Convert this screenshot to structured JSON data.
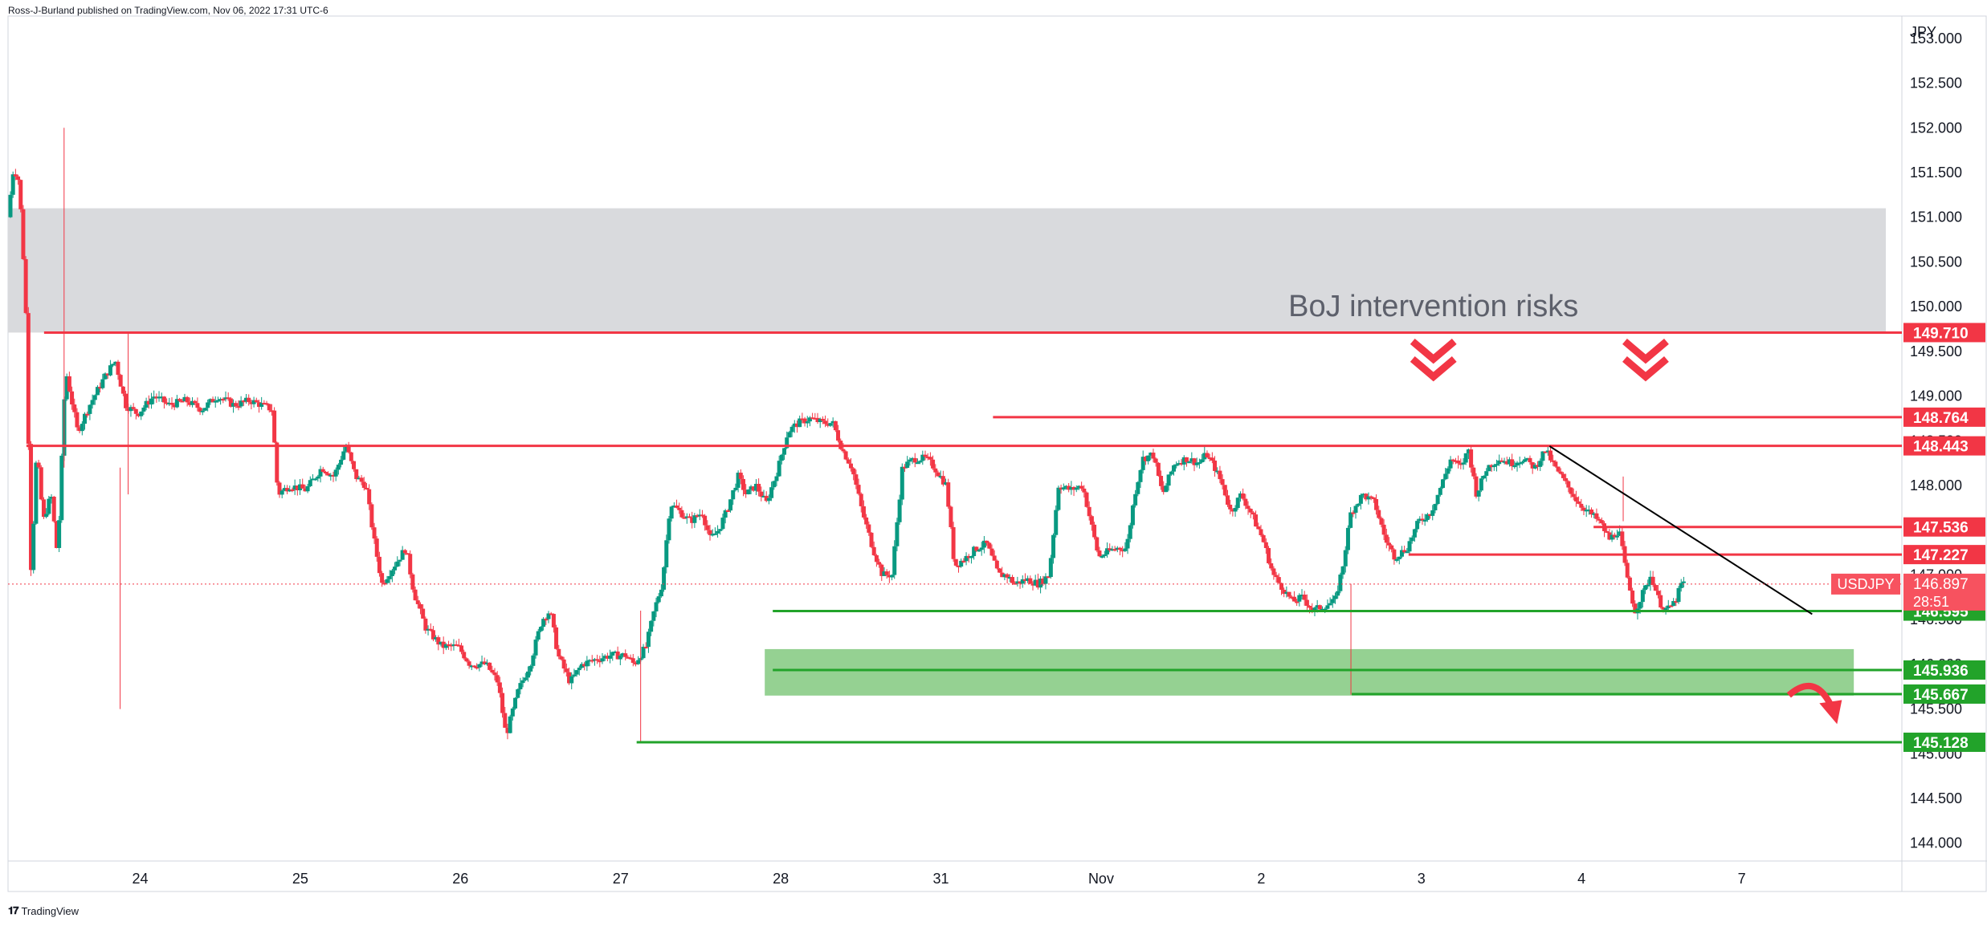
{
  "header": {
    "published": "Ross-J-Burland published on TradingView.com, Nov 06, 2022 17:31 UTC-6"
  },
  "footer": {
    "brand": "TradingView"
  },
  "colors": {
    "up": "#089981",
    "down": "#f23645",
    "support": "#22a32a",
    "resistance": "#f23645",
    "zone_grey": "#d9dadd",
    "zone_green": "#8fcf8c",
    "trend": "#000000"
  },
  "chart_data": {
    "type": "candlestick",
    "symbol": "USDJPY",
    "currency_label": "JPY",
    "ylim": [
      143.8,
      153.25
    ],
    "y_ticks": [
      "153.000",
      "152.500",
      "152.000",
      "151.500",
      "151.000",
      "150.500",
      "150.000",
      "149.500",
      "149.000",
      "148.500",
      "148.000",
      "147.500",
      "147.000",
      "146.500",
      "146.000",
      "145.500",
      "145.000",
      "144.500",
      "144.000"
    ],
    "x_ticks": [
      {
        "label": "24",
        "t": 100
      },
      {
        "label": "25",
        "t": 300
      },
      {
        "label": "26",
        "t": 500
      },
      {
        "label": "27",
        "t": 700
      },
      {
        "label": "28",
        "t": 900
      },
      {
        "label": "31",
        "t": 1100
      },
      {
        "label": "Nov",
        "t": 1300
      },
      {
        "label": "2",
        "t": 1500
      },
      {
        "label": "3",
        "t": 1700
      },
      {
        "label": "4",
        "t": 1900
      },
      {
        "label": "7",
        "t": 2100
      }
    ],
    "t_range": [
      -65,
      2300
    ],
    "price_badges": [
      {
        "value": "149.710",
        "price": 149.71,
        "kind": "resistance"
      },
      {
        "value": "148.764",
        "price": 148.764,
        "kind": "resistance"
      },
      {
        "value": "148.443",
        "price": 148.443,
        "kind": "resistance"
      },
      {
        "value": "147.536",
        "price": 147.536,
        "kind": "resistance"
      },
      {
        "value": "147.227",
        "price": 147.227,
        "kind": "resistance"
      },
      {
        "value": "146.595",
        "price": 146.595,
        "kind": "support"
      },
      {
        "value": "145.936",
        "price": 145.936,
        "kind": "support"
      },
      {
        "value": "145.667",
        "price": 145.667,
        "kind": "support"
      },
      {
        "value": "145.128",
        "price": 145.128,
        "kind": "support"
      }
    ],
    "current": {
      "symbol": "USDJPY",
      "price": "146.897",
      "countdown": "28:51",
      "value": 146.897
    },
    "annotation": "BoJ intervention risks",
    "levels": [
      {
        "price": 149.71,
        "t0": -20,
        "kind": "resistance"
      },
      {
        "price": 148.764,
        "t0": 1165,
        "kind": "resistance"
      },
      {
        "price": 148.443,
        "t0": -42,
        "kind": "resistance"
      },
      {
        "price": 147.536,
        "t0": 1915,
        "kind": "resistance"
      },
      {
        "price": 147.227,
        "t0": 1684,
        "kind": "resistance"
      },
      {
        "price": 146.595,
        "t0": 890,
        "kind": "support"
      },
      {
        "price": 145.936,
        "t0": 890,
        "kind": "support"
      },
      {
        "price": 145.667,
        "t0": 1613,
        "kind": "support"
      },
      {
        "price": 145.128,
        "t0": 720,
        "kind": "support"
      }
    ],
    "zones": [
      {
        "kind": "grey",
        "t0": -65,
        "t1": 2280,
        "p0": 149.71,
        "p1": 151.1
      },
      {
        "kind": "green",
        "t0": 880,
        "t1": 2240,
        "p0": 145.65,
        "p1": 146.17
      }
    ],
    "trendline": {
      "t0": 1860,
      "p0": 148.44,
      "t1": 2188,
      "p1": 146.56
    },
    "arrows_down": [
      {
        "t": 1715,
        "p": 149.45
      },
      {
        "t": 1980,
        "p": 149.45
      }
    ],
    "curved_arrow": {
      "t": 2195,
      "p": 145.6
    },
    "ohlc_anchors": [
      [
        -62,
        151.0
      ],
      [
        -55,
        151.55
      ],
      [
        -48,
        151.4
      ],
      [
        -40,
        150.1
      ],
      [
        -33,
        147.0
      ],
      [
        -26,
        148.4
      ],
      [
        -18,
        147.6
      ],
      [
        -8,
        147.9
      ],
      [
        0,
        147.2
      ],
      [
        10,
        149.3
      ],
      [
        25,
        148.6
      ],
      [
        40,
        148.9
      ],
      [
        58,
        149.2
      ],
      [
        72,
        149.4
      ],
      [
        85,
        148.9
      ],
      [
        100,
        148.8
      ],
      [
        120,
        149.0
      ],
      [
        140,
        148.9
      ],
      [
        160,
        148.95
      ],
      [
        180,
        148.85
      ],
      [
        200,
        149.0
      ],
      [
        220,
        148.9
      ],
      [
        240,
        148.95
      ],
      [
        255,
        148.9
      ],
      [
        268,
        148.85
      ],
      [
        275,
        147.9
      ],
      [
        290,
        148.0
      ],
      [
        310,
        147.95
      ],
      [
        330,
        148.2
      ],
      [
        345,
        148.1
      ],
      [
        360,
        148.45
      ],
      [
        372,
        148.1
      ],
      [
        385,
        148.0
      ],
      [
        395,
        147.4
      ],
      [
        405,
        146.9
      ],
      [
        420,
        147.1
      ],
      [
        435,
        147.3
      ],
      [
        445,
        146.8
      ],
      [
        460,
        146.4
      ],
      [
        480,
        146.2
      ],
      [
        500,
        146.2
      ],
      [
        515,
        146.0
      ],
      [
        535,
        146.0
      ],
      [
        550,
        145.8
      ],
      [
        560,
        145.2
      ],
      [
        575,
        145.7
      ],
      [
        590,
        146.0
      ],
      [
        605,
        146.5
      ],
      [
        615,
        146.6
      ],
      [
        625,
        146.1
      ],
      [
        640,
        145.8
      ],
      [
        655,
        146.0
      ],
      [
        670,
        146.05
      ],
      [
        690,
        146.1
      ],
      [
        710,
        146.1
      ],
      [
        720,
        146.0
      ],
      [
        735,
        146.2
      ],
      [
        745,
        146.6
      ],
      [
        755,
        146.9
      ],
      [
        765,
        147.8
      ],
      [
        778,
        147.7
      ],
      [
        790,
        147.6
      ],
      [
        805,
        147.7
      ],
      [
        815,
        147.4
      ],
      [
        825,
        147.5
      ],
      [
        835,
        147.7
      ],
      [
        850,
        148.1
      ],
      [
        860,
        147.9
      ],
      [
        872,
        148.0
      ],
      [
        885,
        147.8
      ],
      [
        900,
        148.2
      ],
      [
        912,
        148.6
      ],
      [
        925,
        148.7
      ],
      [
        940,
        148.75
      ],
      [
        955,
        148.7
      ],
      [
        968,
        148.7
      ],
      [
        980,
        148.4
      ],
      [
        992,
        148.2
      ],
      [
        1005,
        147.7
      ],
      [
        1018,
        147.3
      ],
      [
        1030,
        147.0
      ],
      [
        1042,
        147.0
      ],
      [
        1055,
        148.2
      ],
      [
        1070,
        148.3
      ],
      [
        1085,
        148.3
      ],
      [
        1095,
        148.2
      ],
      [
        1110,
        148.0
      ],
      [
        1120,
        147.1
      ],
      [
        1135,
        147.2
      ],
      [
        1148,
        147.3
      ],
      [
        1160,
        147.35
      ],
      [
        1175,
        147.0
      ],
      [
        1185,
        147.0
      ],
      [
        1195,
        146.9
      ],
      [
        1210,
        146.95
      ],
      [
        1225,
        146.9
      ],
      [
        1238,
        147.0
      ],
      [
        1250,
        148.0
      ],
      [
        1265,
        147.95
      ],
      [
        1280,
        148.0
      ],
      [
        1290,
        147.6
      ],
      [
        1300,
        147.2
      ],
      [
        1310,
        147.25
      ],
      [
        1322,
        147.3
      ],
      [
        1335,
        147.3
      ],
      [
        1345,
        147.9
      ],
      [
        1355,
        148.3
      ],
      [
        1368,
        148.35
      ],
      [
        1380,
        147.9
      ],
      [
        1395,
        148.25
      ],
      [
        1410,
        148.3
      ],
      [
        1425,
        148.25
      ],
      [
        1435,
        148.35
      ],
      [
        1445,
        148.2
      ],
      [
        1455,
        148.0
      ],
      [
        1465,
        147.7
      ],
      [
        1478,
        147.9
      ],
      [
        1490,
        147.7
      ],
      [
        1505,
        147.4
      ],
      [
        1518,
        147.0
      ],
      [
        1530,
        146.85
      ],
      [
        1542,
        146.7
      ],
      [
        1555,
        146.75
      ],
      [
        1568,
        146.6
      ],
      [
        1580,
        146.65
      ],
      [
        1595,
        146.7
      ],
      [
        1605,
        147.1
      ],
      [
        1615,
        147.7
      ],
      [
        1630,
        147.9
      ],
      [
        1645,
        147.8
      ],
      [
        1658,
        147.4
      ],
      [
        1670,
        147.2
      ],
      [
        1685,
        147.3
      ],
      [
        1700,
        147.6
      ],
      [
        1715,
        147.7
      ],
      [
        1728,
        148.0
      ],
      [
        1740,
        148.3
      ],
      [
        1752,
        148.2
      ],
      [
        1762,
        148.4
      ],
      [
        1772,
        147.9
      ],
      [
        1785,
        148.2
      ],
      [
        1800,
        148.3
      ],
      [
        1815,
        148.25
      ],
      [
        1830,
        148.3
      ],
      [
        1845,
        148.2
      ],
      [
        1858,
        148.4
      ],
      [
        1870,
        148.2
      ],
      [
        1885,
        148.0
      ],
      [
        1900,
        147.8
      ],
      [
        1912,
        147.7
      ],
      [
        1925,
        147.6
      ],
      [
        1938,
        147.4
      ],
      [
        1950,
        147.5
      ],
      [
        1960,
        146.95
      ],
      [
        1970,
        146.6
      ],
      [
        1980,
        146.8
      ],
      [
        1990,
        147.0
      ],
      [
        2000,
        146.7
      ],
      [
        2010,
        146.6
      ],
      [
        2020,
        146.7
      ],
      [
        2028,
        146.9
      ]
    ]
  }
}
